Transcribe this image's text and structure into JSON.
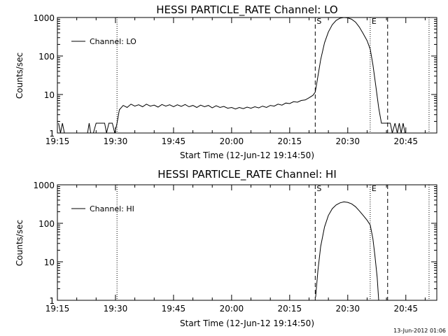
{
  "footer": "13-Jun-2012 01:06",
  "chart_data": [
    {
      "type": "line",
      "title": "HESSI PARTICLE_RATE Channel: LO",
      "xlabel": "Start Time (12-Jun-12 19:14:50)",
      "ylabel": "Counts/sec",
      "yscale": "log",
      "ylim": [
        1,
        1000
      ],
      "xlim": [
        "19:15",
        "20:53"
      ],
      "x_ticks": [
        "19:15",
        "19:30",
        "19:45",
        "20:00",
        "20:15",
        "20:30",
        "20:45"
      ],
      "y_ticks": [
        "1",
        "10",
        "100",
        "1000"
      ],
      "grid": false,
      "legend": {
        "position": "top-left",
        "entries": [
          "Channel: LO"
        ]
      },
      "markers": [
        {
          "label": "S",
          "time": "20:21.6",
          "style": "dashed"
        },
        {
          "label": "E",
          "time": "20:35.8",
          "style": "dotted"
        },
        {
          "label": "",
          "time": "20:40.3",
          "style": "dashed"
        },
        {
          "label": "",
          "time": "19:30.4",
          "style": "dotted"
        },
        {
          "label": "",
          "time": "20:51",
          "style": "dotted"
        }
      ],
      "series": [
        {
          "name": "Channel: LO",
          "points": [
            [
              "19:15.3",
              1.8
            ],
            [
              "19:15.8",
              1
            ],
            [
              "19:16.3",
              1.8
            ],
            [
              "19:16.8",
              1
            ],
            [
              "19:17.5",
              1
            ],
            [
              "19:18.5",
              1
            ],
            [
              "19:20",
              1
            ],
            [
              "19:21.5",
              1
            ],
            [
              "19:22.8",
              1
            ],
            [
              "19:23.2",
              1.8
            ],
            [
              "19:23.6",
              1
            ],
            [
              "19:24.3",
              1
            ],
            [
              "19:25",
              1.8
            ],
            [
              "19:26.5",
              1.8
            ],
            [
              "19:27.2",
              1.8
            ],
            [
              "19:27.7",
              1
            ],
            [
              "19:28.3",
              1.8
            ],
            [
              "19:29.2",
              1.8
            ],
            [
              "19:29.8",
              1
            ],
            [
              "19:30.4",
              1.8
            ],
            [
              "19:31",
              4
            ],
            [
              "19:32",
              5.2
            ],
            [
              "19:33",
              4.6
            ],
            [
              "19:34",
              5.6
            ],
            [
              "19:35",
              5
            ],
            [
              "19:36",
              5.4
            ],
            [
              "19:37",
              4.8
            ],
            [
              "19:38",
              5.6
            ],
            [
              "19:39",
              5
            ],
            [
              "19:40",
              5.3
            ],
            [
              "19:41",
              4.7
            ],
            [
              "19:42",
              5.5
            ],
            [
              "19:43",
              5
            ],
            [
              "19:44",
              5.4
            ],
            [
              "19:45",
              4.8
            ],
            [
              "19:46",
              5.4
            ],
            [
              "19:47",
              4.9
            ],
            [
              "19:48",
              5.5
            ],
            [
              "19:49",
              4.8
            ],
            [
              "19:50",
              5.2
            ],
            [
              "19:51",
              4.6
            ],
            [
              "19:52",
              5.3
            ],
            [
              "19:53",
              4.8
            ],
            [
              "19:54",
              5.2
            ],
            [
              "19:55",
              4.5
            ],
            [
              "19:56",
              5.1
            ],
            [
              "19:57",
              4.6
            ],
            [
              "19:58",
              4.9
            ],
            [
              "19:59",
              4.4
            ],
            [
              "20:00",
              4.6
            ],
            [
              "20:01",
              4.2
            ],
            [
              "20:02",
              4.6
            ],
            [
              "20:03",
              4.3
            ],
            [
              "20:04",
              4.7
            ],
            [
              "20:05",
              4.4
            ],
            [
              "20:06",
              4.8
            ],
            [
              "20:07",
              4.5
            ],
            [
              "20:08",
              5
            ],
            [
              "20:09",
              4.6
            ],
            [
              "20:10",
              5.2
            ],
            [
              "20:11",
              5
            ],
            [
              "20:12",
              5.6
            ],
            [
              "20:13",
              5.3
            ],
            [
              "20:14",
              6
            ],
            [
              "20:15",
              5.8
            ],
            [
              "20:16",
              6.5
            ],
            [
              "20:17",
              6.3
            ],
            [
              "20:18",
              7
            ],
            [
              "20:19",
              7.2
            ],
            [
              "20:20",
              8.2
            ],
            [
              "20:21",
              9.5
            ],
            [
              "20:21.6",
              11.5
            ],
            [
              "20:22",
              20
            ],
            [
              "20:23",
              80
            ],
            [
              "20:24",
              220
            ],
            [
              "20:25",
              420
            ],
            [
              "20:26",
              650
            ],
            [
              "20:27",
              840
            ],
            [
              "20:28",
              960
            ],
            [
              "20:29",
              1000
            ],
            [
              "20:30",
              980
            ],
            [
              "20:31",
              900
            ],
            [
              "20:32",
              760
            ],
            [
              "20:33",
              560
            ],
            [
              "20:34",
              380
            ],
            [
              "20:35",
              250
            ],
            [
              "20:35.8",
              150
            ],
            [
              "20:36.5",
              60
            ],
            [
              "20:37.3",
              15
            ],
            [
              "20:38",
              4.5
            ],
            [
              "20:38.7",
              1.8
            ],
            [
              "20:39.3",
              1.8
            ],
            [
              "20:40.3",
              1.8
            ],
            [
              "20:41",
              1.8
            ],
            [
              "20:41.5",
              1
            ],
            [
              "20:42.2",
              1.8
            ],
            [
              "20:42.8",
              1
            ],
            [
              "20:43.3",
              1.8
            ],
            [
              "20:43.8",
              1
            ],
            [
              "20:44.3",
              1.8
            ],
            [
              "20:44.8",
              1
            ]
          ]
        }
      ]
    },
    {
      "type": "line",
      "title": "HESSI PARTICLE_RATE Channel: HI",
      "xlabel": "Start Time (12-Jun-12 19:14:50)",
      "ylabel": "Counts/sec",
      "yscale": "log",
      "ylim": [
        1,
        1000
      ],
      "xlim": [
        "19:15",
        "20:53"
      ],
      "x_ticks": [
        "19:15",
        "19:30",
        "19:45",
        "20:00",
        "20:15",
        "20:30",
        "20:45"
      ],
      "y_ticks": [
        "1",
        "10",
        "100",
        "1000"
      ],
      "grid": false,
      "legend": {
        "position": "top-left",
        "entries": [
          "Channel: HI"
        ]
      },
      "markers": [
        {
          "label": "S",
          "time": "20:21.6",
          "style": "dashed"
        },
        {
          "label": "E",
          "time": "20:35.8",
          "style": "dotted"
        },
        {
          "label": "",
          "time": "20:40.3",
          "style": "dashed"
        },
        {
          "label": "",
          "time": "19:30.4",
          "style": "dotted"
        },
        {
          "label": "",
          "time": "20:51",
          "style": "dotted"
        }
      ],
      "series": [
        {
          "name": "Channel: HI",
          "points": [
            [
              "20:21.7",
              1.2
            ],
            [
              "20:22.3",
              6
            ],
            [
              "20:23",
              25
            ],
            [
              "20:24",
              80
            ],
            [
              "20:25",
              160
            ],
            [
              "20:26",
              240
            ],
            [
              "20:27",
              300
            ],
            [
              "20:28",
              340
            ],
            [
              "20:29",
              360
            ],
            [
              "20:30",
              350
            ],
            [
              "20:31",
              320
            ],
            [
              "20:32",
              270
            ],
            [
              "20:33",
              210
            ],
            [
              "20:34",
              160
            ],
            [
              "20:35",
              120
            ],
            [
              "20:35.8",
              90
            ],
            [
              "20:36.5",
              40
            ],
            [
              "20:37",
              15
            ],
            [
              "20:37.6",
              4
            ],
            [
              "20:38",
              1
            ]
          ]
        }
      ]
    }
  ]
}
